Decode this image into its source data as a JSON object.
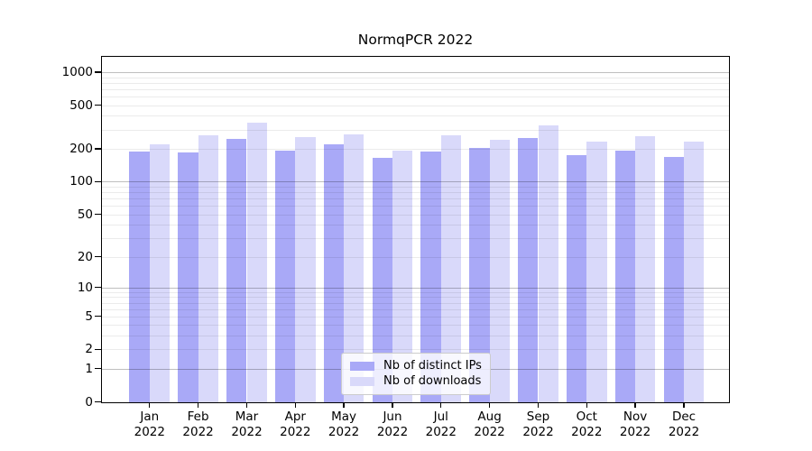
{
  "chart_data": {
    "type": "bar",
    "title": "NormqPCR 2022",
    "categories": [
      "Jan",
      "Feb",
      "Mar",
      "Apr",
      "May",
      "Jun",
      "Jul",
      "Aug",
      "Sep",
      "Oct",
      "Nov",
      "Dec"
    ],
    "x_year_label": "2022",
    "series": [
      {
        "name": "Nb of distinct IPs",
        "color": "#a9a9f7",
        "values": [
          188,
          185,
          245,
          194,
          219,
          165,
          188,
          204,
          250,
          174,
          194,
          168
        ]
      },
      {
        "name": "Nb of downloads",
        "color": "#d9d9fa",
        "values": [
          220,
          265,
          350,
          254,
          271,
          193,
          265,
          242,
          328,
          232,
          263,
          235
        ]
      }
    ],
    "y_axis": {
      "scale": "log1p",
      "ticks": [
        0,
        1,
        2,
        5,
        10,
        20,
        50,
        100,
        200,
        500,
        1000
      ],
      "max": 1380
    },
    "grid": "horizontal, log minor lines on",
    "legend_position": "bottom-center"
  },
  "colors": {
    "background": "#ffffff",
    "axis": "#000000",
    "grid_major": "rgba(0,0,0,0.25)",
    "grid_minor": "rgba(0,0,0,0.08)",
    "series_distinct_ips": "#a9a9f7",
    "series_downloads": "#d9d9fa"
  }
}
